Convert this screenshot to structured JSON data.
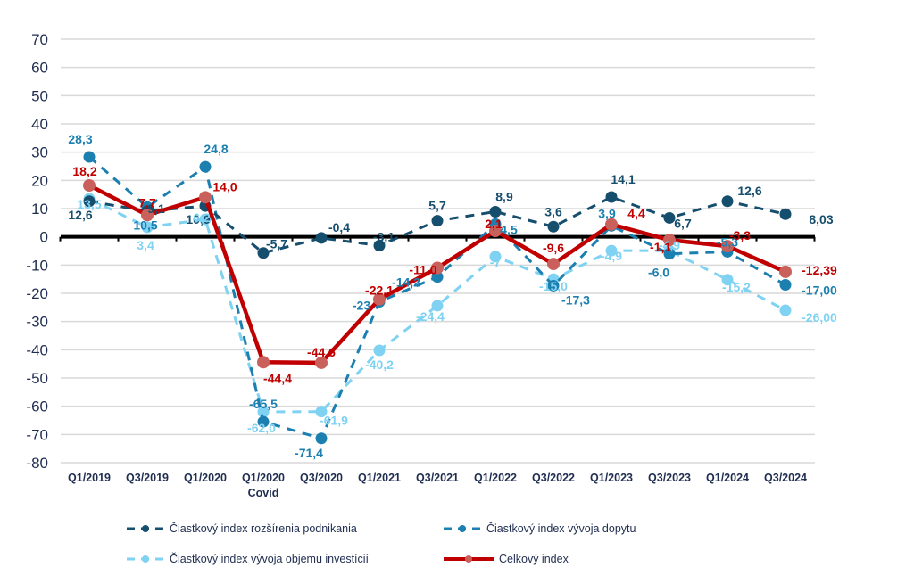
{
  "chart_data": {
    "type": "line",
    "title": "",
    "xlabel": "",
    "ylabel": "",
    "ylim": [
      -80,
      70
    ],
    "yticks": [
      70,
      60,
      50,
      40,
      30,
      20,
      10,
      0,
      -10,
      -20,
      -30,
      -40,
      -50,
      -60,
      -70,
      -80
    ],
    "grid": true,
    "legend_position": "bottom",
    "categories": [
      [
        "Q1/2019"
      ],
      [
        "Q3/2019"
      ],
      [
        "Q1/2020"
      ],
      [
        "Q1/2020",
        "Covid"
      ],
      [
        "Q3/2020"
      ],
      [
        "Q1/2021"
      ],
      [
        "Q3/2021"
      ],
      [
        "Q1/2022"
      ],
      [
        "Q3/2022"
      ],
      [
        "Q1/2023"
      ],
      [
        "Q3/2023"
      ],
      [
        "Q1/2024"
      ],
      [
        "Q3/2024"
      ]
    ],
    "series": [
      {
        "name": "Čiastkový index rozšírenia podnikania",
        "color": "#164e6e",
        "style": "dashed",
        "values": [
          12.6,
          9.1,
          10.9,
          -5.7,
          -0.4,
          -3.1,
          5.7,
          8.9,
          3.6,
          14.1,
          6.7,
          12.6,
          8.03
        ],
        "labels": [
          "12,6",
          "9,1",
          "10,9",
          "-5,7",
          "-0,4",
          "-3,1",
          "5,7",
          "8,9",
          "3,6",
          "14,1",
          "6,7",
          "12,6",
          "8,03"
        ]
      },
      {
        "name": "Čiastkový index vývoja dopytu",
        "color": "#1b7fb0",
        "style": "dashed",
        "values": [
          28.3,
          10.5,
          24.8,
          -65.5,
          -71.4,
          -23,
          -14.2,
          4.5,
          -17.3,
          3.9,
          -6.0,
          -5.3,
          -17.0
        ],
        "labels": [
          "28,3",
          "10,5",
          "24,8",
          "-65,5",
          "-71,4",
          "-23",
          "-14,2",
          "4,5",
          "-17,3",
          "3,9",
          "-6,0",
          "-5,3",
          "-17,00"
        ]
      },
      {
        "name": "Čiastkový index vývoja objemu investícií",
        "color": "#7fd2f2",
        "style": "dashed",
        "values": [
          13.5,
          3.4,
          6.2,
          -62.0,
          -61.9,
          -40.2,
          -24.4,
          -7,
          -15.0,
          -4.9,
          -4.9,
          -15.2,
          -26.0
        ],
        "labels": [
          "13,5",
          "3,4",
          "6,2",
          "-62,0",
          "-61,9",
          "-40,2",
          "-24,4",
          "-7",
          "-15,0",
          "-4,9",
          "-4,9",
          "-15,2",
          "-26,00"
        ]
      },
      {
        "name": "Celkový index",
        "color": "#c00000",
        "marker_color": "#c9605c",
        "style": "solid",
        "values": [
          18.2,
          7.7,
          14.0,
          -44.4,
          -44.6,
          -22.1,
          -11.0,
          2.1,
          -9.6,
          4.4,
          -1.1,
          -3.3,
          -12.39
        ],
        "labels": [
          "18,2",
          "7,7",
          "14,0",
          "-44,4",
          "-44,6",
          "-22,1",
          "-11,0",
          "2,1",
          "-9,6",
          "4,4",
          "-1,1",
          "-3,3",
          "-12,39"
        ]
      }
    ]
  }
}
